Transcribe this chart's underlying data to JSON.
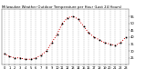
{
  "title": "Milwaukee Weather Outdoor Temperature per Hour (Last 24 Hours)",
  "hours": [
    0,
    1,
    2,
    3,
    4,
    5,
    6,
    7,
    8,
    9,
    10,
    11,
    12,
    13,
    14,
    15,
    16,
    17,
    18,
    19,
    20,
    21,
    22,
    23
  ],
  "temps": [
    28,
    26,
    25,
    25,
    24,
    24,
    25,
    27,
    30,
    36,
    42,
    50,
    54,
    55,
    53,
    48,
    43,
    40,
    38,
    36,
    35,
    34,
    36,
    40
  ],
  "line_color": "#cc0000",
  "marker_color": "#000000",
  "bg_color": "#ffffff",
  "grid_color": "#999999",
  "text_color": "#000000",
  "ylim_min": 20,
  "ylim_max": 60,
  "title_fontsize": 2.8,
  "tick_fontsize": 2.6,
  "y_ticks": [
    25,
    30,
    35,
    40,
    45,
    50,
    55
  ]
}
